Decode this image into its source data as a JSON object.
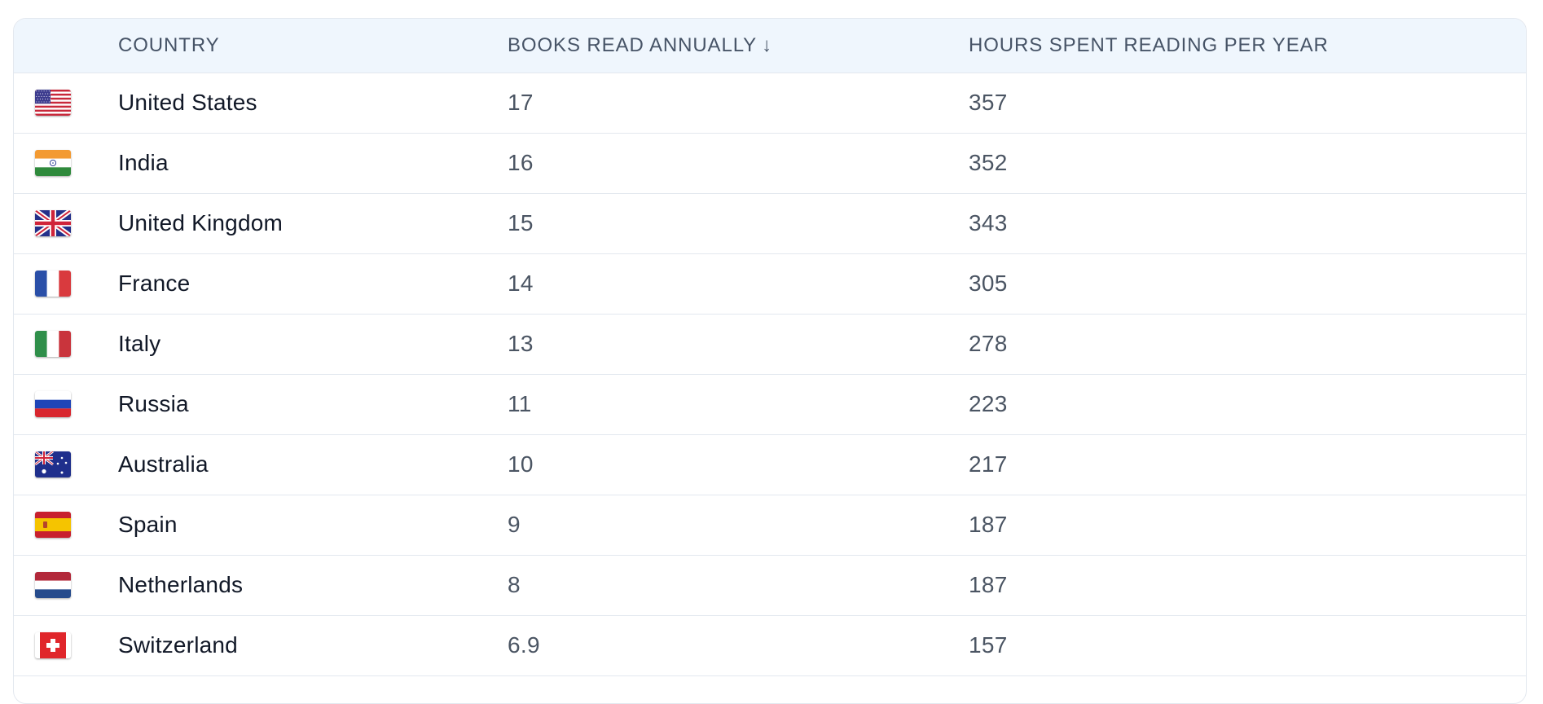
{
  "table": {
    "headers": {
      "flag": "",
      "country": "COUNTRY",
      "books": "BOOKS READ ANNUALLY",
      "hours": "HOURS SPENT READING PER YEAR"
    },
    "sort_indicator": "↓",
    "rows": [
      {
        "flag": "us",
        "country": "United States",
        "books": "17",
        "hours": "357"
      },
      {
        "flag": "in",
        "country": "India",
        "books": "16",
        "hours": "352"
      },
      {
        "flag": "gb",
        "country": "United Kingdom",
        "books": "15",
        "hours": "343"
      },
      {
        "flag": "fr",
        "country": "France",
        "books": "14",
        "hours": "305"
      },
      {
        "flag": "it",
        "country": "Italy",
        "books": "13",
        "hours": "278"
      },
      {
        "flag": "ru",
        "country": "Russia",
        "books": "11",
        "hours": "223"
      },
      {
        "flag": "au",
        "country": "Australia",
        "books": "10",
        "hours": "217"
      },
      {
        "flag": "es",
        "country": "Spain",
        "books": "9",
        "hours": "187"
      },
      {
        "flag": "nl",
        "country": "Netherlands",
        "books": "8",
        "hours": "187"
      },
      {
        "flag": "ch",
        "country": "Switzerland",
        "books": "6.9",
        "hours": "157"
      }
    ]
  }
}
